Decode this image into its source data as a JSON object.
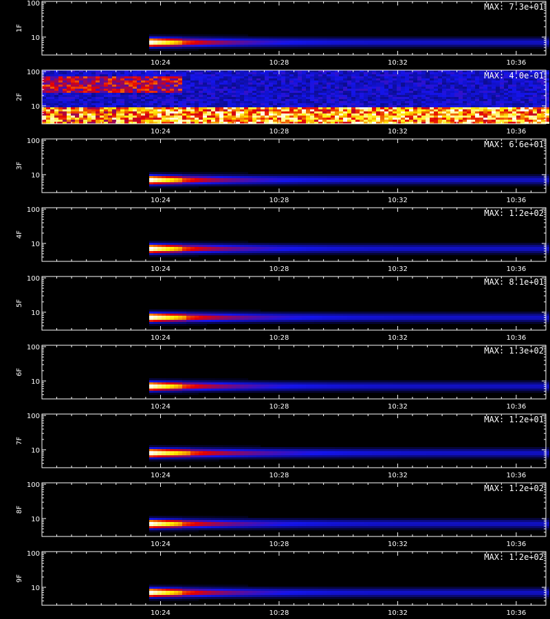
{
  "chart_data": {
    "type": "heatmap",
    "colormap": [
      "#000000",
      "#0000ff",
      "#ff0000",
      "#ffff00",
      "#ffffff"
    ],
    "y_scale": "log",
    "ylim": [
      3,
      110
    ],
    "y_tick_labels": [
      "100",
      "10"
    ],
    "y_tick_values": [
      100,
      10
    ],
    "x_tick_labels": [
      "10:24",
      "10:28",
      "10:32",
      "10:36"
    ],
    "x_range_minutes": [
      "10:20",
      "10:37"
    ],
    "panels": [
      {
        "ylabel": "1F",
        "max_label": "MAX: 7.3e+01",
        "onset": "10:23:30",
        "band_y": 7,
        "peak": 1.0,
        "decay_minutes": 2.0,
        "noise": false
      },
      {
        "ylabel": "2F",
        "max_label": "MAX: 4.0e-01",
        "onset": "10:23:30",
        "band_y": 7,
        "peak": 0.8,
        "decay_minutes": 8.0,
        "noise": true
      },
      {
        "ylabel": "3F",
        "max_label": "MAX: 6.6e+01",
        "onset": "10:23:30",
        "band_y": 7,
        "peak": 1.0,
        "decay_minutes": 2.0,
        "noise": false
      },
      {
        "ylabel": "4F",
        "max_label": "MAX: 1.2e+02",
        "onset": "10:23:30",
        "band_y": 7,
        "peak": 1.0,
        "decay_minutes": 2.0,
        "noise": false
      },
      {
        "ylabel": "5F",
        "max_label": "MAX: 8.1e+01",
        "onset": "10:23:30",
        "band_y": 7,
        "peak": 1.0,
        "decay_minutes": 2.2,
        "noise": false
      },
      {
        "ylabel": "6F",
        "max_label": "MAX: 1.3e+02",
        "onset": "10:23:30",
        "band_y": 7,
        "peak": 1.0,
        "decay_minutes": 2.0,
        "noise": false
      },
      {
        "ylabel": "7F",
        "max_label": "MAX: 1.2e+01",
        "onset": "10:23:30",
        "band_y": 8,
        "peak": 1.0,
        "decay_minutes": 2.4,
        "noise": false
      },
      {
        "ylabel": "8F",
        "max_label": "MAX: 1.2e+02",
        "onset": "10:23:30",
        "band_y": 7,
        "peak": 1.0,
        "decay_minutes": 2.0,
        "noise": false
      },
      {
        "ylabel": "9F",
        "max_label": "MAX: 1.2e+02",
        "onset": "10:23:30",
        "band_y": 7,
        "peak": 1.0,
        "decay_minutes": 2.0,
        "noise": false
      }
    ],
    "xlabel": ""
  }
}
